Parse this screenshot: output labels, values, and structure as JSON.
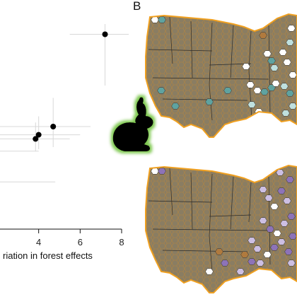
{
  "panel_label": "B",
  "chart_data": {
    "type": "scatter",
    "xlabel": "riation in forest effects",
    "xlim": [
      2.0,
      8.0
    ],
    "xticks": [
      4,
      6,
      8
    ],
    "grid": false,
    "points": [
      {
        "x": 7.2,
        "y": 0.95,
        "xerr": [
          5.5,
          9.0
        ],
        "yerr": [
          0.7,
          1.0
        ]
      },
      {
        "x": 4.7,
        "y": 0.5,
        "xerr": [
          1.8,
          6.5
        ],
        "yerr": [
          0.4,
          0.64
        ]
      },
      {
        "x": 4.0,
        "y": 0.46,
        "xerr": [
          1.8,
          6.0
        ],
        "yerr": [
          0.39,
          0.55
        ]
      },
      {
        "x": 3.85,
        "y": 0.44,
        "xerr": [
          1.8,
          5.5
        ],
        "yerr": [
          0.38,
          0.52
        ]
      },
      {
        "x": 2.0,
        "y": 0.38,
        "xerr": [
          1.5,
          4.0
        ],
        "yerr": [
          0.34,
          0.42
        ]
      },
      {
        "x": 2.0,
        "y": 0.23,
        "xerr": [
          1.5,
          4.8
        ],
        "yerr": [
          0.2,
          0.26
        ]
      }
    ]
  },
  "maps": [
    {
      "name": "top",
      "colors": {
        "land": "#8a7d62",
        "border": "#f0a020",
        "hex_teal": "#5fa3a0",
        "hex_light": "#bfe0de",
        "hex_white": "#ffffff",
        "hex_brown": "#b07a3e"
      }
    },
    {
      "name": "bottom",
      "colors": {
        "land": "#8a7d62",
        "border": "#f0a020",
        "hex_purple": "#8d73b8",
        "hex_lavender": "#cdbfe3",
        "hex_white": "#ffffff",
        "hex_brown": "#b07a3e"
      }
    }
  ],
  "icon": {
    "name": "rabbit-silhouette-icon",
    "fill": "#000000",
    "glow": "#7ec850"
  }
}
